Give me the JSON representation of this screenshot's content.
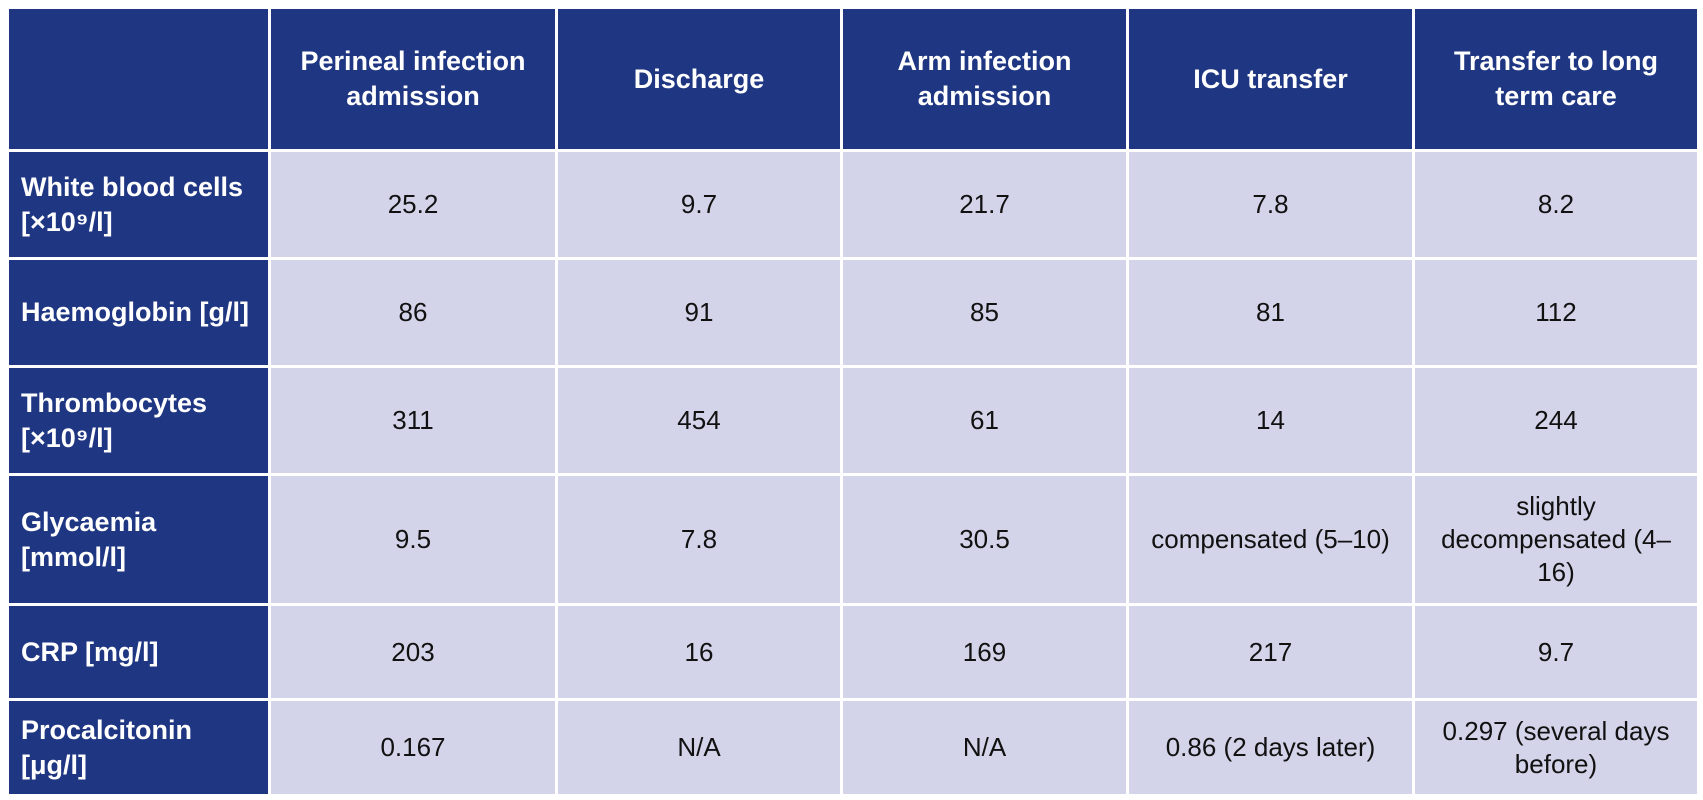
{
  "table": {
    "corner": "",
    "columns": [
      "Perineal infection admission",
      "Discharge",
      "Arm infection admission",
      "ICU transfer",
      "Transfer to long term care"
    ],
    "rows": [
      {
        "label": "White blood cells [×10⁹/l]",
        "values": [
          "25.2",
          "9.7",
          "21.7",
          "7.8",
          "8.2"
        ]
      },
      {
        "label": "Haemoglobin [g/l]",
        "values": [
          "86",
          "91",
          "85",
          "81",
          "112"
        ]
      },
      {
        "label": "Thrombocytes [×10⁹/l]",
        "values": [
          "311",
          "454",
          "61",
          "14",
          "244"
        ]
      },
      {
        "label": "Glycaemia [mmol/l]",
        "values": [
          "9.5",
          "7.8",
          "30.5",
          "compensated (5–10)",
          "slightly decompensated (4–16)"
        ]
      },
      {
        "label": "CRP [mg/l]",
        "values": [
          "203",
          "16",
          "169",
          "217",
          "9.7"
        ]
      },
      {
        "label": "Procalcitonin [μg/l]",
        "values": [
          "0.167",
          "N/A",
          "N/A",
          "0.86 (2 days later)",
          "0.297 (several days before)"
        ]
      }
    ]
  },
  "colors": {
    "header_bg": "#1f3682",
    "cell_bg": "#d3d3e9",
    "border": "#ffffff"
  }
}
